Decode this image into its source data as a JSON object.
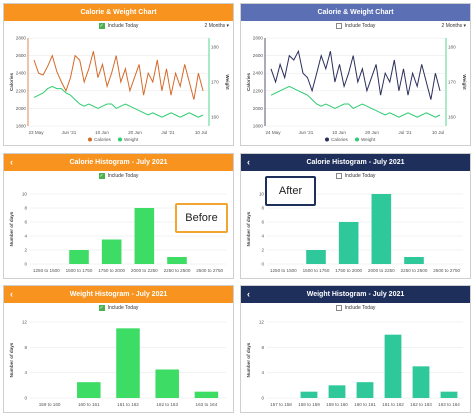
{
  "colors": {
    "orange": "#f7931e",
    "blue_header": "#5b6fb5",
    "navy": "#1f2f5c",
    "before_bar": "#3ddc64",
    "after_bar": "#2ec89a",
    "before_calories": "#d56a2a",
    "after_calories": "#2b2f5a",
    "weight_line": "#2ecc71"
  },
  "callouts": {
    "before": "Before",
    "after": "After"
  },
  "panels": {
    "line_before": {
      "title": "Calorie & Weight Chart",
      "include_today": "Include Today",
      "range": "2 Months ▾",
      "left_axis_title": "Calories",
      "right_axis_title": "Weight",
      "y_left_ticks": [
        "2800",
        "2600",
        "2400",
        "2200",
        "2000",
        "1800"
      ],
      "y_right_ticks": [
        "180",
        "170",
        "160"
      ],
      "x_ticks": [
        "23 May",
        "Jun '21",
        "10 Jun",
        "20 Jun",
        "Jul '21",
        "10 Jul"
      ],
      "legend": [
        "Calories",
        "Weight"
      ]
    },
    "line_after": {
      "title": "Calorie & Weight Chart",
      "include_today": "Include Today",
      "range": "2 Months ▾",
      "left_axis_title": "Calories",
      "right_axis_title": "Weight",
      "y_left_ticks": [
        "2800",
        "2600",
        "2400",
        "2200",
        "2000",
        "1800"
      ],
      "y_right_ticks": [
        "180",
        "170",
        "160"
      ],
      "x_ticks": [
        "24 May",
        "Jun '21",
        "10 Jun",
        "20 Jun",
        "Jul '21",
        "10 Jul"
      ],
      "legend": [
        "Calories",
        "Weight"
      ]
    },
    "cal_hist_before": {
      "title": "Calorie Histogram - July 2021",
      "include_today": "Include Today",
      "y_axis_title": "Number of days"
    },
    "cal_hist_after": {
      "title": "Calorie Histogram - July 2021",
      "include_today": "Include Today",
      "y_axis_title": "Number of days"
    },
    "wt_hist_before": {
      "title": "Weight Histogram - July 2021",
      "include_today": "Include Today",
      "y_axis_title": "Number of days"
    },
    "wt_hist_after": {
      "title": "Weight Histogram - July 2021",
      "include_today": "Include Today",
      "y_axis_title": "Number of days"
    }
  },
  "chart_data": [
    {
      "type": "line",
      "title": "Calorie & Weight Chart",
      "ylabel": "Calories",
      "y2label": "Weight",
      "ylim": [
        1800,
        2800
      ],
      "y2lim": [
        160,
        180
      ],
      "x_tick_labels": [
        "23 May",
        "Jun '21",
        "10 Jun",
        "20 Jun",
        "Jul '21",
        "10 Jul"
      ],
      "series": [
        {
          "name": "Calories",
          "axis": "left",
          "values": [
            2550,
            2400,
            2380,
            2480,
            2600,
            2420,
            2300,
            2200,
            2350,
            2600,
            2550,
            2300,
            2450,
            2650,
            2350,
            2500,
            2250,
            2400,
            2600,
            2300,
            2450,
            2200,
            2350,
            2500,
            2150,
            2400,
            2300,
            2550,
            2200,
            2450,
            2150,
            2400,
            2250,
            2500,
            2300,
            2100,
            2400,
            2200
          ]
        },
        {
          "name": "Weight",
          "axis": "right",
          "values": [
            166.5,
            167,
            167.5,
            168.5,
            169,
            168.5,
            168.5,
            167.5,
            167,
            166,
            165,
            164.5,
            165,
            164.5,
            164,
            164.5,
            165,
            165,
            164,
            164.5,
            165,
            164.5,
            164,
            163.5,
            163,
            162.5,
            163,
            162.5,
            162,
            162.5,
            163,
            162.5,
            162,
            162.5,
            163,
            162.5,
            162,
            162.5
          ]
        }
      ]
    },
    {
      "type": "line",
      "title": "Calorie & Weight Chart",
      "ylabel": "Calories",
      "y2label": "Weight",
      "ylim": [
        1800,
        2800
      ],
      "y2lim": [
        160,
        180
      ],
      "x_tick_labels": [
        "24 May",
        "Jun '21",
        "10 Jun",
        "20 Jun",
        "Jul '21",
        "10 Jul"
      ],
      "series": [
        {
          "name": "Calories",
          "axis": "left",
          "values": [
            2450,
            2300,
            2500,
            2350,
            2600,
            2550,
            2650,
            2400,
            2350,
            2200,
            2400,
            2600,
            2450,
            2650,
            2300,
            2500,
            2250,
            2400,
            2600,
            2300,
            2450,
            2200,
            2350,
            2500,
            2150,
            2400,
            2300,
            2550,
            2200,
            2450,
            2150,
            2400,
            2250,
            2500,
            2300,
            2100,
            2400,
            2200
          ]
        },
        {
          "name": "Weight",
          "axis": "right",
          "values": [
            167,
            167.5,
            168,
            168.5,
            169,
            168.5,
            168,
            167.5,
            167,
            166,
            165,
            164.5,
            165,
            164.5,
            164,
            164.5,
            165,
            165,
            164,
            164.5,
            165,
            164.5,
            164,
            163.5,
            163,
            162.5,
            163,
            162.5,
            162,
            162.5,
            163,
            162.5,
            162,
            162.5,
            163,
            162.5,
            162,
            162.5
          ]
        }
      ]
    },
    {
      "type": "bar",
      "title": "Calorie Histogram - July 2021",
      "ylabel": "Number of days",
      "ylim": [
        0,
        10
      ],
      "y_ticks": [
        0,
        2,
        4,
        6,
        8,
        10
      ],
      "categories": [
        "1250 to 1500",
        "1500 to 1750",
        "1750 to 2000",
        "2000 to 2250",
        "2250 to 2500",
        "2500 to 2750"
      ],
      "values": [
        0,
        2,
        3.5,
        8,
        1,
        0
      ]
    },
    {
      "type": "bar",
      "title": "Calorie Histogram - July 2021",
      "ylabel": "Number of days",
      "ylim": [
        0,
        10
      ],
      "y_ticks": [
        0,
        2,
        4,
        6,
        8,
        10
      ],
      "categories": [
        "1250 to 1500",
        "1500 to 1750",
        "1750 to 2000",
        "2000 to 2250",
        "2250 to 2500",
        "2500 to 2750"
      ],
      "values": [
        0,
        2,
        6,
        10,
        1,
        0
      ]
    },
    {
      "type": "bar",
      "title": "Weight Histogram - July 2021",
      "ylabel": "Number of days",
      "ylim": [
        0,
        12
      ],
      "y_ticks": [
        0,
        4,
        8,
        12
      ],
      "categories": [
        "159 to 160",
        "160 to 161",
        "161 to 162",
        "162 to 163",
        "163 to 164"
      ],
      "values": [
        0,
        2.5,
        11,
        4.5,
        1
      ]
    },
    {
      "type": "bar",
      "title": "Weight Histogram - July 2021",
      "ylabel": "Number of days",
      "ylim": [
        0,
        12
      ],
      "y_ticks": [
        0,
        4,
        8,
        12
      ],
      "categories": [
        "157 to 158",
        "158 to 159",
        "159 to 160",
        "160 to 161",
        "161 to 162",
        "162 to 163",
        "163 to 164"
      ],
      "values": [
        0,
        1,
        2,
        2.5,
        10,
        5,
        1
      ]
    }
  ]
}
